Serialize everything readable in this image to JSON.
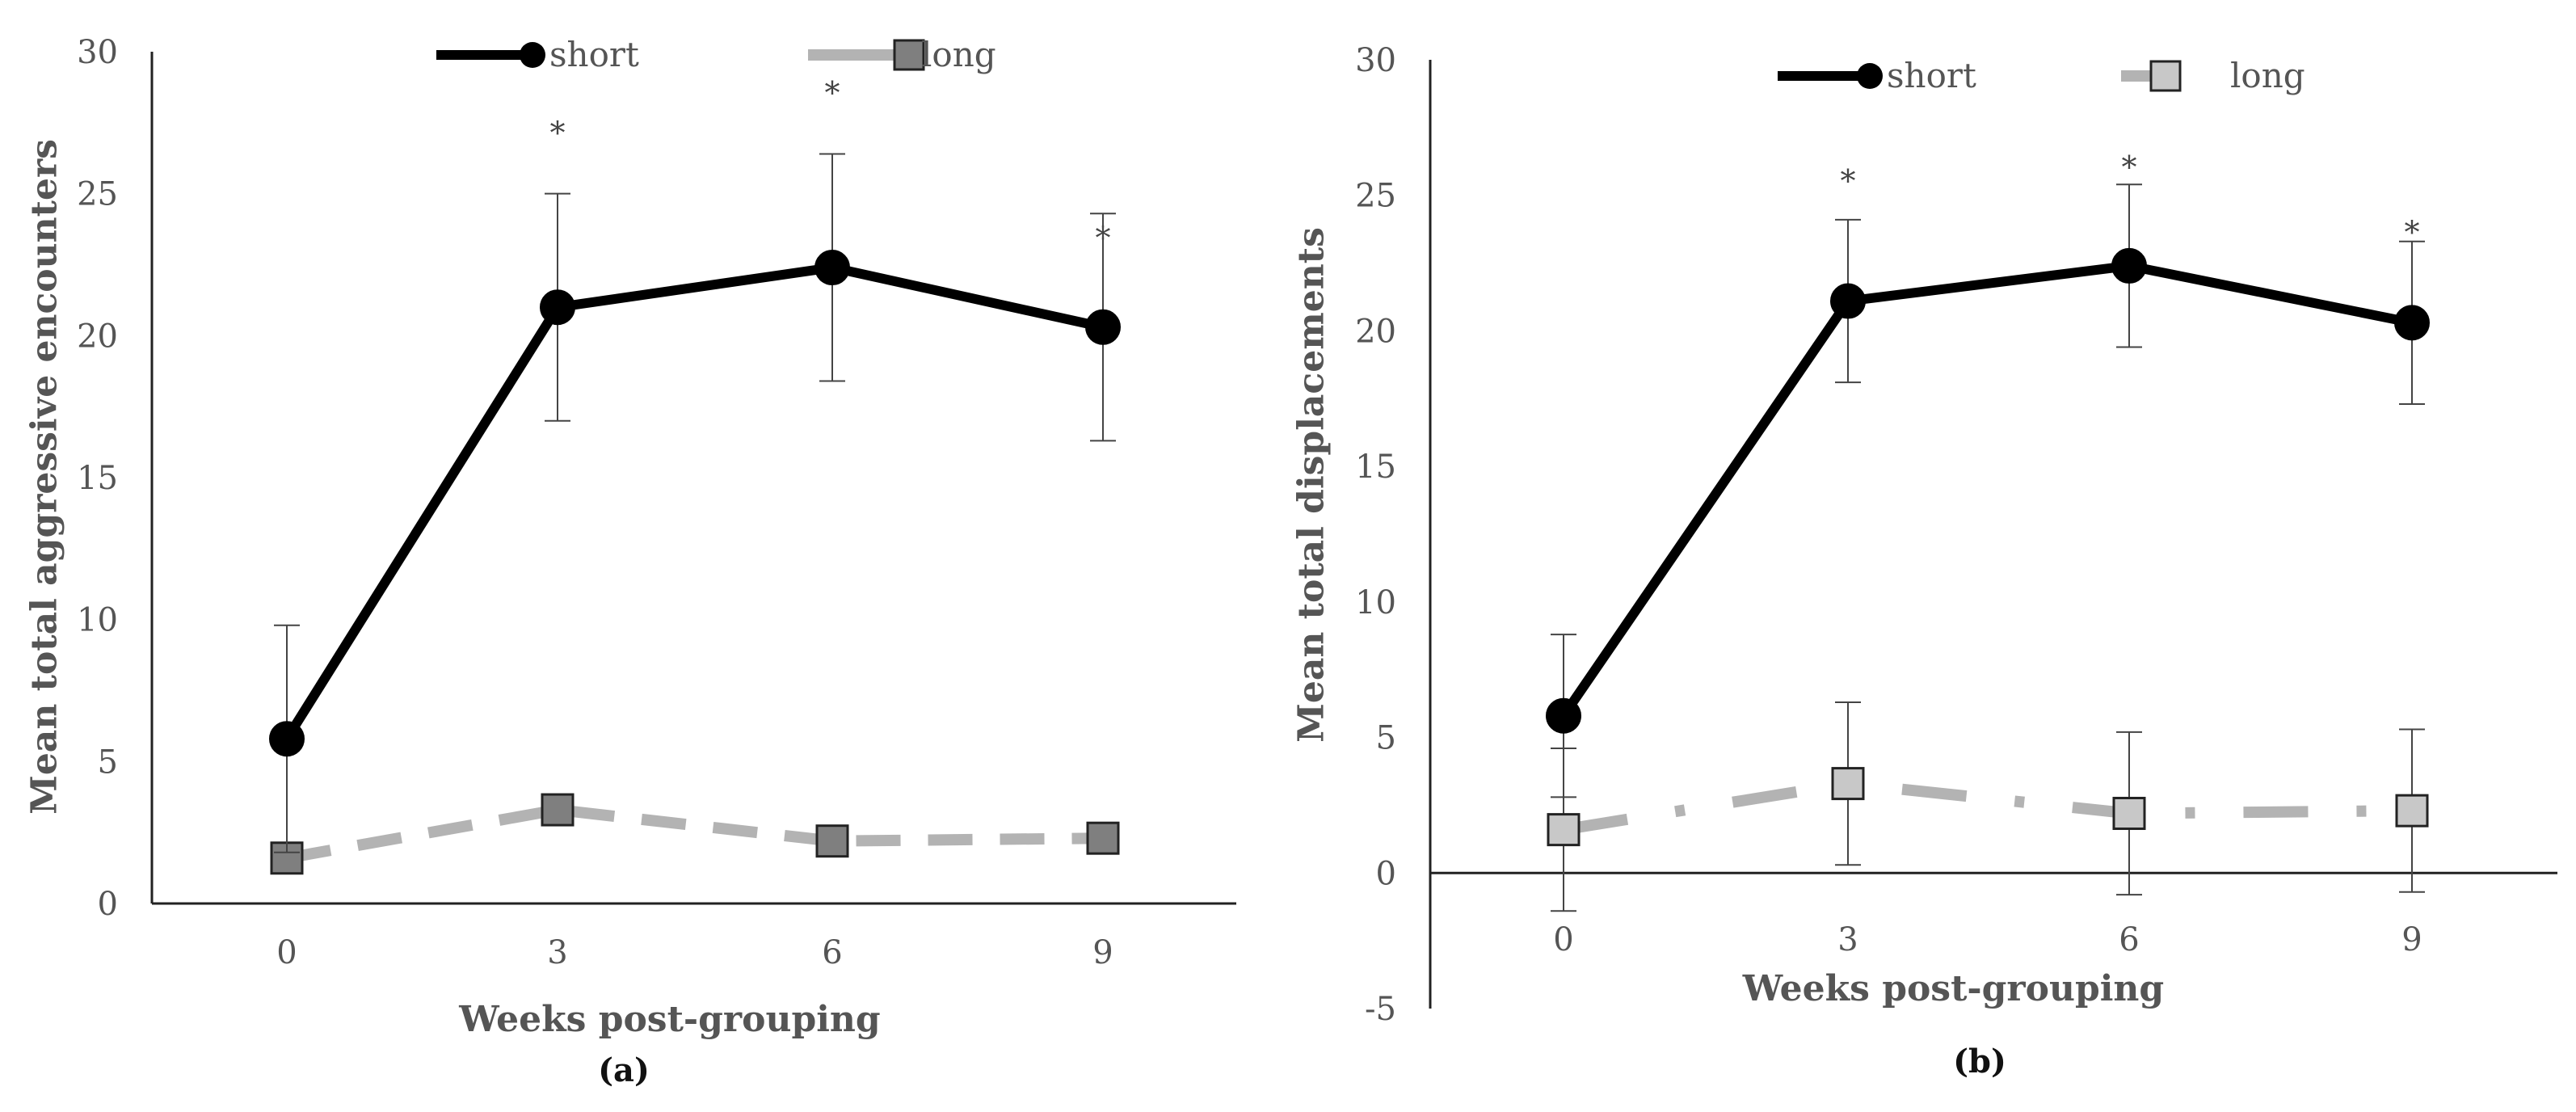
{
  "chart_data": [
    {
      "type": "line",
      "panel_label": "(a)",
      "xlabel": "Weeks post-grouping",
      "ylabel": "Mean total aggressive encounters",
      "ylim": [
        0,
        30
      ],
      "yticks": [
        "0",
        "5",
        "10",
        "15",
        "20",
        "25",
        "30"
      ],
      "categories": [
        "0",
        "3",
        "6",
        "9"
      ],
      "legend_position": "top-center",
      "series": [
        {
          "name": "short",
          "values": [
            5.8,
            21.0,
            22.4,
            20.3
          ],
          "error": [
            4.0,
            4.0,
            4.0,
            4.0
          ],
          "line_style": "solid",
          "marker": "circle",
          "color": "#000000"
        },
        {
          "name": "long",
          "values": [
            1.6,
            3.3,
            2.2,
            2.3
          ],
          "line_style": "dashed",
          "marker": "square",
          "color": "#b3b3b3",
          "marker_fill": "#7f7f7f"
        }
      ],
      "annotations": [
        {
          "category": "3",
          "text": "*",
          "y": 27.4
        },
        {
          "category": "6",
          "text": "*",
          "y": 28.8
        },
        {
          "category": "9",
          "text": "*",
          "y": 23.7
        }
      ]
    },
    {
      "type": "line",
      "panel_label": "(b)",
      "xlabel": "Weeks post-grouping",
      "ylabel": "Mean total displacements",
      "ylim": [
        -5,
        30
      ],
      "yticks": [
        "-5",
        "0",
        "5",
        "10",
        "15",
        "20",
        "25",
        "30"
      ],
      "categories": [
        "0",
        "3",
        "6",
        "9"
      ],
      "legend_position": "top-center",
      "series": [
        {
          "name": "short",
          "values": [
            5.8,
            21.1,
            22.4,
            20.3
          ],
          "error": [
            3.0,
            3.0,
            3.0,
            3.0
          ],
          "line_style": "solid",
          "marker": "circle",
          "color": "#000000"
        },
        {
          "name": "long",
          "values": [
            1.6,
            3.3,
            2.2,
            2.3
          ],
          "error": [
            3.0,
            3.0,
            3.0,
            3.0
          ],
          "line_style": "dash-dot",
          "marker": "square",
          "color": "#b3b3b3",
          "marker_fill": "#c8c8c8"
        }
      ],
      "annotations": [
        {
          "category": "3",
          "text": "*",
          "y": 25.8
        },
        {
          "category": "6",
          "text": "*",
          "y": 26.3
        },
        {
          "category": "9",
          "text": "*",
          "y": 23.9
        }
      ]
    }
  ]
}
